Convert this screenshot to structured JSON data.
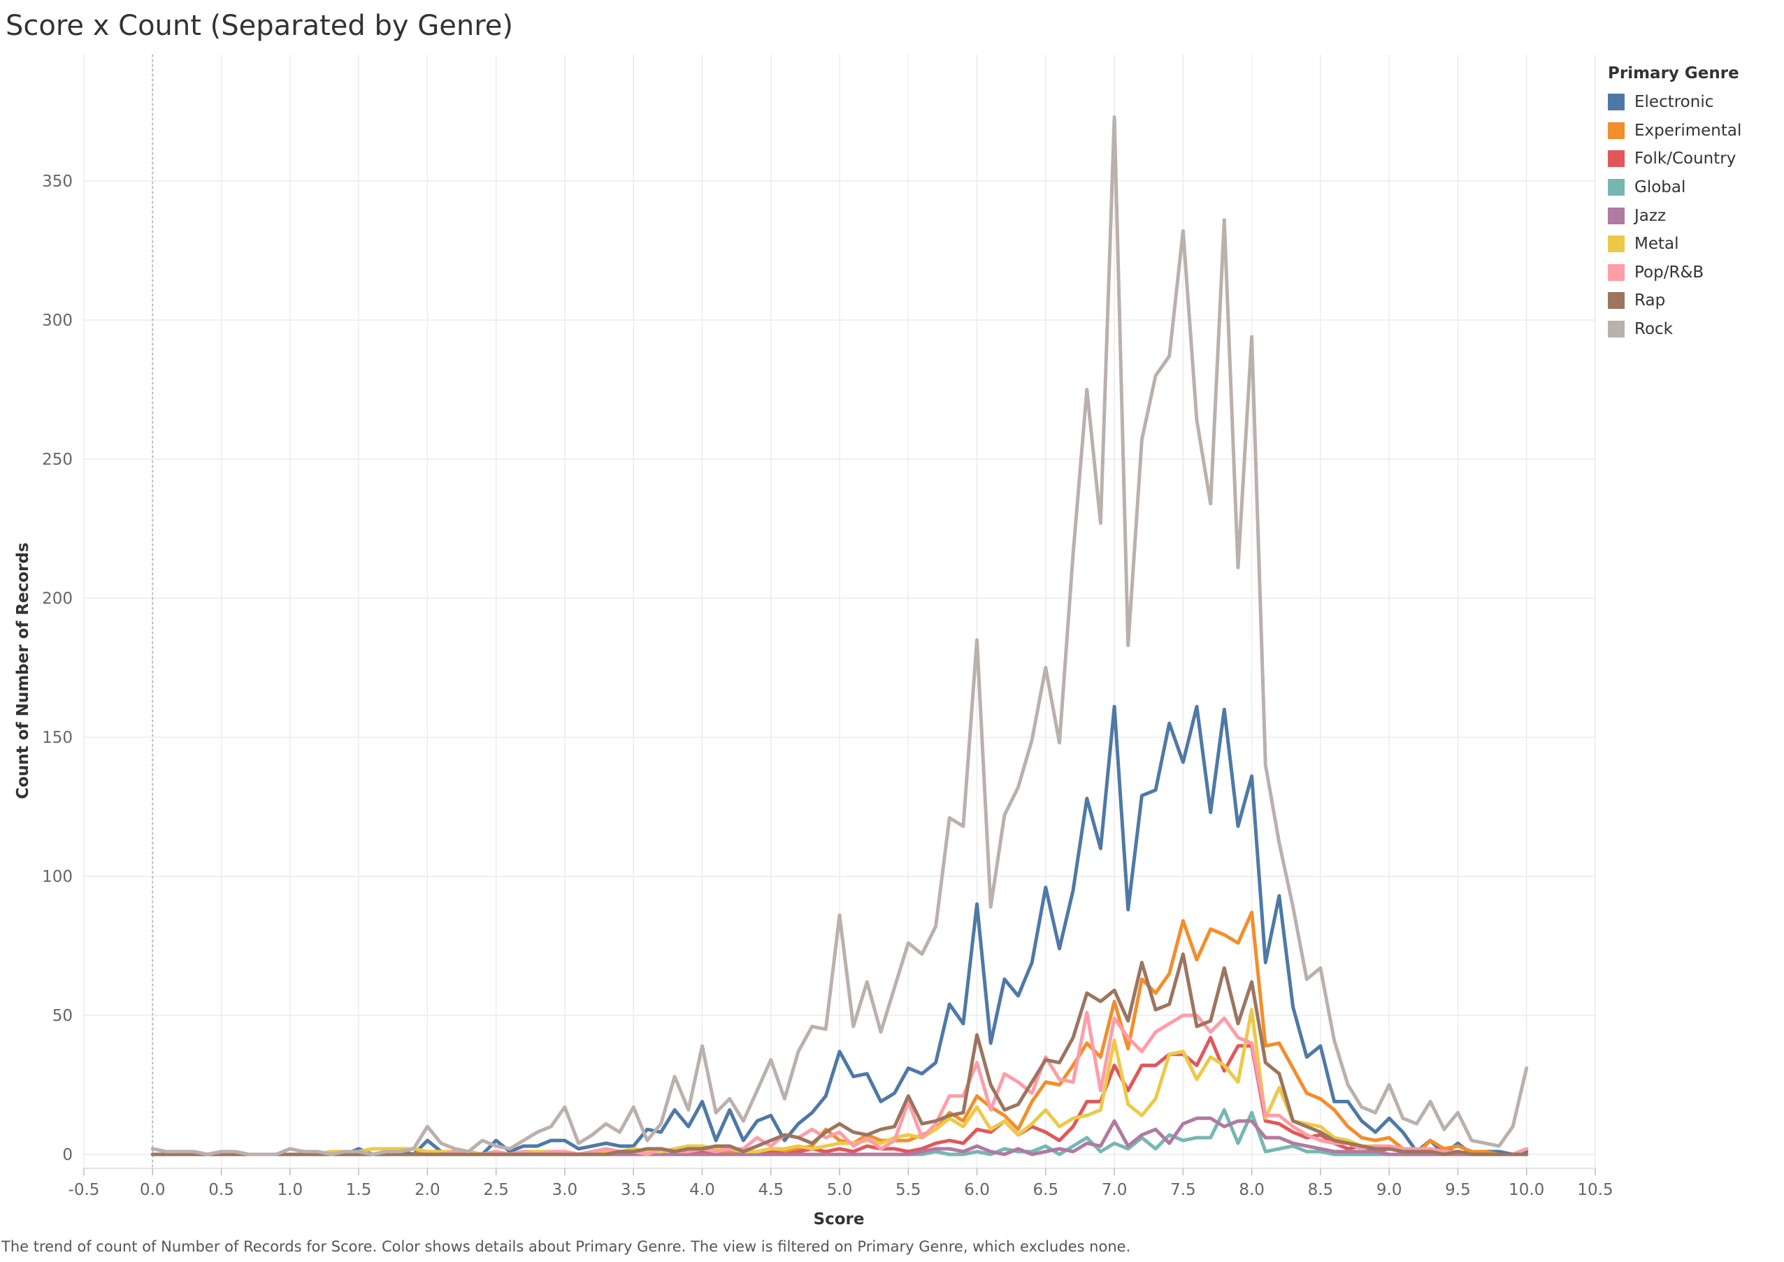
{
  "chart_data": {
    "type": "line",
    "title": "Score x Count (Separated by Genre)",
    "xlabel": "Score",
    "ylabel": "Count of Number of Records",
    "xlim": [
      -0.5,
      10.5
    ],
    "ylim": [
      0,
      375
    ],
    "x_ticks": [
      "-0.5",
      "0.0",
      "0.5",
      "1.0",
      "1.5",
      "2.0",
      "2.5",
      "3.0",
      "3.5",
      "4.0",
      "4.5",
      "5.0",
      "5.5",
      "6.0",
      "6.5",
      "7.0",
      "7.5",
      "8.0",
      "8.5",
      "9.0",
      "9.5",
      "10.0",
      "10.5"
    ],
    "y_ticks": [
      "0",
      "50",
      "100",
      "150",
      "200",
      "250",
      "300",
      "350"
    ],
    "legend_title": "Primary Genre",
    "legend_position": "right",
    "grid": true,
    "x": [
      0.0,
      0.1,
      0.2,
      0.3,
      0.4,
      0.5,
      0.6,
      0.7,
      0.8,
      0.9,
      1.0,
      1.1,
      1.2,
      1.3,
      1.4,
      1.5,
      1.6,
      1.7,
      1.8,
      1.9,
      2.0,
      2.1,
      2.2,
      2.3,
      2.4,
      2.5,
      2.6,
      2.7,
      2.8,
      2.9,
      3.0,
      3.1,
      3.2,
      3.3,
      3.4,
      3.5,
      3.6,
      3.7,
      3.8,
      3.9,
      4.0,
      4.1,
      4.2,
      4.3,
      4.4,
      4.5,
      4.6,
      4.7,
      4.8,
      4.9,
      5.0,
      5.1,
      5.2,
      5.3,
      5.4,
      5.5,
      5.6,
      5.7,
      5.8,
      5.9,
      6.0,
      6.1,
      6.2,
      6.3,
      6.4,
      6.5,
      6.6,
      6.7,
      6.8,
      6.9,
      7.0,
      7.1,
      7.2,
      7.3,
      7.4,
      7.5,
      7.6,
      7.7,
      7.8,
      7.9,
      8.0,
      8.1,
      8.2,
      8.3,
      8.4,
      8.5,
      8.6,
      8.7,
      8.8,
      8.9,
      9.0,
      9.1,
      9.2,
      9.3,
      9.4,
      9.5,
      9.6,
      9.7,
      9.8,
      9.9,
      10.0
    ],
    "series": [
      {
        "name": "Electronic",
        "color": "#4e79a7",
        "values": [
          0,
          0,
          0,
          0,
          0,
          0,
          0,
          0,
          0,
          0,
          0,
          0,
          0,
          1,
          0,
          2,
          0,
          0,
          1,
          0,
          5,
          1,
          1,
          1,
          0,
          5,
          1,
          3,
          3,
          5,
          5,
          2,
          3,
          4,
          3,
          3,
          9,
          8,
          16,
          10,
          19,
          5,
          16,
          5,
          12,
          14,
          5,
          11,
          15,
          21,
          37,
          28,
          29,
          19,
          22,
          31,
          29,
          33,
          54,
          47,
          90,
          40,
          63,
          57,
          69,
          96,
          74,
          95,
          128,
          110,
          161,
          88,
          129,
          131,
          155,
          141,
          161,
          123,
          160,
          118,
          136,
          69,
          93,
          53,
          35,
          39,
          19,
          19,
          12,
          8,
          13,
          8,
          1,
          5,
          0,
          4,
          0,
          1,
          1,
          0,
          1
        ]
      },
      {
        "name": "Experimental",
        "color": "#f28e2b",
        "values": [
          0,
          0,
          0,
          0,
          0,
          0,
          0,
          0,
          0,
          0,
          0,
          0,
          0,
          0,
          0,
          0,
          0,
          0,
          0,
          0,
          1,
          0,
          0,
          0,
          0,
          1,
          0,
          0,
          0,
          1,
          1,
          0,
          1,
          0,
          1,
          1,
          0,
          2,
          1,
          1,
          2,
          0,
          1,
          1,
          1,
          2,
          1,
          2,
          3,
          9,
          5,
          4,
          7,
          5,
          5,
          5,
          7,
          9,
          15,
          12,
          21,
          17,
          14,
          9,
          19,
          26,
          25,
          32,
          40,
          35,
          55,
          38,
          63,
          58,
          65,
          84,
          70,
          81,
          79,
          76,
          87,
          39,
          40,
          31,
          22,
          20,
          16,
          10,
          6,
          5,
          6,
          2,
          0,
          5,
          2,
          3,
          1,
          1,
          0,
          0,
          0
        ]
      },
      {
        "name": "Folk/Country",
        "color": "#e15759",
        "values": [
          0,
          0,
          0,
          0,
          0,
          0,
          0,
          0,
          0,
          0,
          0,
          0,
          0,
          0,
          0,
          0,
          0,
          0,
          0,
          0,
          0,
          0,
          0,
          0,
          0,
          0,
          0,
          0,
          0,
          0,
          0,
          0,
          0,
          0,
          0,
          0,
          0,
          0,
          0,
          0,
          1,
          0,
          0,
          0,
          1,
          1,
          0,
          1,
          2,
          1,
          2,
          1,
          3,
          2,
          2,
          1,
          2,
          4,
          5,
          4,
          9,
          8,
          12,
          7,
          10,
          8,
          5,
          10,
          19,
          19,
          32,
          23,
          32,
          32,
          36,
          36,
          32,
          42,
          30,
          39,
          39,
          12,
          11,
          8,
          6,
          7,
          4,
          2,
          3,
          1,
          2,
          2,
          1,
          1,
          0,
          1,
          0,
          0,
          0,
          0,
          0
        ]
      },
      {
        "name": "Global",
        "color": "#76b7b2",
        "values": [
          0,
          0,
          0,
          0,
          0,
          0,
          0,
          0,
          0,
          0,
          0,
          0,
          0,
          0,
          0,
          0,
          0,
          0,
          0,
          0,
          0,
          0,
          0,
          0,
          0,
          0,
          0,
          0,
          0,
          0,
          0,
          0,
          0,
          0,
          0,
          0,
          0,
          0,
          0,
          0,
          0,
          0,
          0,
          0,
          0,
          0,
          0,
          0,
          0,
          0,
          0,
          0,
          0,
          0,
          0,
          0,
          0,
          1,
          0,
          0,
          1,
          0,
          2,
          1,
          1,
          3,
          0,
          3,
          6,
          1,
          4,
          2,
          6,
          2,
          7,
          5,
          6,
          6,
          16,
          4,
          15,
          1,
          2,
          3,
          1,
          1,
          0,
          0,
          0,
          0,
          0,
          0,
          0,
          0,
          0,
          0,
          0,
          0,
          0,
          0,
          0
        ]
      },
      {
        "name": "Jazz",
        "color": "#b07aa1",
        "values": [
          0,
          0,
          0,
          0,
          0,
          0,
          0,
          0,
          0,
          0,
          0,
          0,
          0,
          0,
          0,
          0,
          0,
          0,
          0,
          0,
          0,
          0,
          0,
          0,
          0,
          0,
          0,
          0,
          0,
          0,
          0,
          0,
          0,
          0,
          0,
          0,
          0,
          0,
          0,
          0,
          0,
          0,
          0,
          0,
          0,
          0,
          0,
          0,
          0,
          0,
          0,
          0,
          0,
          0,
          0,
          0,
          1,
          2,
          2,
          1,
          3,
          1,
          0,
          2,
          0,
          1,
          2,
          1,
          4,
          3,
          12,
          3,
          7,
          9,
          4,
          11,
          13,
          13,
          10,
          12,
          12,
          6,
          6,
          4,
          3,
          2,
          1,
          1,
          1,
          1,
          0,
          0,
          0,
          0,
          0,
          0,
          0,
          0,
          0,
          0,
          0
        ]
      },
      {
        "name": "Metal",
        "color": "#edc948",
        "values": [
          0,
          0,
          0,
          0,
          0,
          0,
          0,
          0,
          0,
          0,
          0,
          0,
          0,
          1,
          1,
          1,
          2,
          2,
          2,
          2,
          1,
          1,
          1,
          1,
          0,
          1,
          0,
          1,
          1,
          1,
          1,
          0,
          1,
          1,
          1,
          2,
          1,
          1,
          2,
          3,
          3,
          2,
          2,
          1,
          1,
          2,
          2,
          3,
          2,
          3,
          4,
          4,
          5,
          4,
          6,
          7,
          6,
          9,
          13,
          10,
          17,
          9,
          12,
          7,
          11,
          16,
          10,
          13,
          14,
          16,
          41,
          18,
          14,
          20,
          36,
          37,
          27,
          35,
          32,
          26,
          52,
          13,
          24,
          12,
          11,
          10,
          6,
          5,
          3,
          3,
          2,
          1,
          1,
          1,
          0,
          1,
          0,
          0,
          0,
          0,
          0
        ]
      },
      {
        "name": "Pop/R&B",
        "color": "#ff9da7",
        "values": [
          0,
          0,
          0,
          0,
          0,
          0,
          0,
          0,
          0,
          0,
          0,
          0,
          0,
          0,
          0,
          0,
          0,
          0,
          0,
          0,
          0,
          0,
          1,
          0,
          0,
          1,
          0,
          1,
          0,
          1,
          1,
          0,
          1,
          2,
          1,
          1,
          0,
          2,
          1,
          1,
          2,
          1,
          2,
          2,
          6,
          3,
          7,
          6,
          9,
          6,
          8,
          3,
          6,
          2,
          5,
          19,
          6,
          11,
          21,
          21,
          33,
          16,
          29,
          26,
          22,
          35,
          27,
          26,
          51,
          23,
          49,
          42,
          37,
          44,
          47,
          50,
          50,
          44,
          49,
          42,
          40,
          14,
          14,
          10,
          7,
          5,
          4,
          4,
          2,
          3,
          3,
          2,
          2,
          2,
          1,
          1,
          0,
          0,
          0,
          0,
          2
        ]
      },
      {
        "name": "Rap",
        "color": "#9c755f",
        "values": [
          0,
          0,
          0,
          0,
          0,
          0,
          0,
          0,
          0,
          0,
          0,
          0,
          0,
          0,
          0,
          0,
          0,
          0,
          0,
          0,
          0,
          0,
          0,
          0,
          0,
          0,
          0,
          0,
          0,
          0,
          0,
          0,
          0,
          0,
          1,
          1,
          2,
          2,
          1,
          2,
          2,
          3,
          3,
          1,
          3,
          5,
          7,
          6,
          4,
          8,
          11,
          8,
          7,
          9,
          10,
          21,
          11,
          12,
          14,
          15,
          43,
          25,
          16,
          18,
          26,
          34,
          33,
          42,
          58,
          55,
          59,
          48,
          69,
          52,
          54,
          72,
          46,
          48,
          67,
          47,
          62,
          33,
          29,
          12,
          10,
          8,
          5,
          4,
          3,
          2,
          2,
          1,
          1,
          1,
          0,
          1,
          0,
          0,
          0,
          0,
          0
        ]
      },
      {
        "name": "Rock",
        "color": "#bab0ac",
        "values": [
          2,
          1,
          1,
          1,
          0,
          1,
          1,
          0,
          0,
          0,
          2,
          1,
          1,
          0,
          1,
          1,
          0,
          1,
          1,
          2,
          10,
          4,
          2,
          1,
          5,
          3,
          2,
          5,
          8,
          10,
          17,
          4,
          7,
          11,
          8,
          17,
          5,
          11,
          28,
          16,
          39,
          15,
          20,
          12,
          23,
          34,
          20,
          37,
          46,
          45,
          86,
          46,
          62,
          44,
          60,
          76,
          72,
          82,
          121,
          118,
          185,
          89,
          122,
          132,
          149,
          175,
          148,
          216,
          275,
          227,
          373,
          183,
          257,
          280,
          287,
          332,
          264,
          234,
          336,
          211,
          294,
          140,
          112,
          89,
          63,
          67,
          41,
          25,
          17,
          15,
          25,
          13,
          11,
          19,
          9,
          15,
          5,
          4,
          3,
          10,
          31
        ]
      }
    ]
  },
  "caption": "The trend of count of Number of Records for Score.  Color shows details about Primary Genre. The view is filtered on Primary Genre, which excludes none."
}
